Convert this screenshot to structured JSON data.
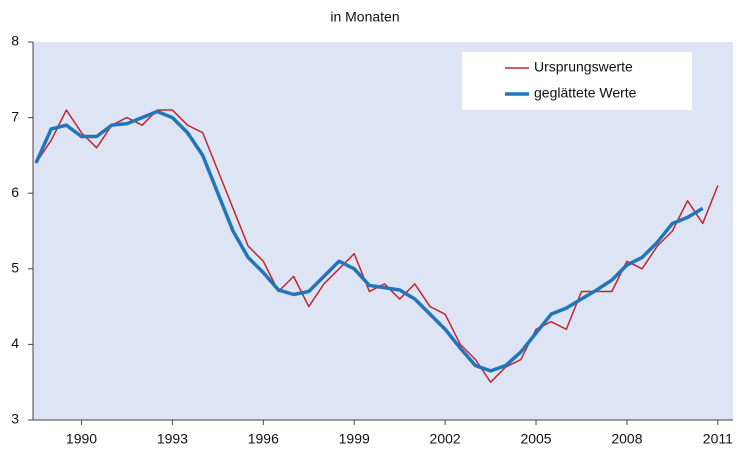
{
  "chart_data": {
    "type": "line",
    "title": "in Monaten",
    "x": [
      1988.5,
      1989.0,
      1989.5,
      1990.0,
      1990.5,
      1991.0,
      1991.5,
      1992.0,
      1992.5,
      1993.0,
      1993.5,
      1994.0,
      1994.5,
      1995.0,
      1995.5,
      1996.0,
      1996.5,
      1997.0,
      1997.5,
      1998.0,
      1998.5,
      1999.0,
      1999.5,
      2000.0,
      2000.5,
      2001.0,
      2001.5,
      2002.0,
      2002.5,
      2003.0,
      2003.5,
      2004.0,
      2004.5,
      2005.0,
      2005.5,
      2006.0,
      2006.5,
      2007.0,
      2007.5,
      2008.0,
      2008.5,
      2009.0,
      2009.5,
      2010.0,
      2010.5,
      2011.0
    ],
    "series": [
      {
        "name": "Ursprungswerte",
        "color": "#c0282e",
        "width": 1.5,
        "values": [
          6.4,
          6.7,
          7.1,
          6.8,
          6.6,
          6.9,
          7.0,
          6.9,
          7.1,
          7.1,
          6.9,
          6.8,
          6.3,
          5.8,
          5.3,
          5.1,
          4.7,
          4.9,
          4.5,
          4.8,
          5.0,
          5.2,
          4.7,
          4.8,
          4.6,
          4.8,
          4.5,
          4.4,
          4.0,
          3.8,
          3.5,
          3.7,
          3.8,
          4.2,
          4.3,
          4.2,
          4.7,
          4.7,
          4.7,
          5.1,
          5.0,
          5.3,
          5.5,
          5.9,
          5.6,
          6.1
        ]
      },
      {
        "name": "geglättete Werte",
        "color": "#2474b8",
        "width": 3.5,
        "values": [
          6.4,
          6.85,
          6.9,
          6.75,
          6.75,
          6.9,
          6.92,
          7.0,
          7.08,
          7.0,
          6.8,
          6.5,
          6.0,
          5.5,
          5.15,
          4.95,
          4.72,
          4.66,
          4.7,
          4.9,
          5.1,
          5.0,
          4.78,
          4.75,
          4.72,
          4.6,
          4.4,
          4.2,
          3.95,
          3.72,
          3.65,
          3.72,
          3.9,
          4.15,
          4.4,
          4.48,
          4.6,
          4.72,
          4.85,
          5.05,
          5.15,
          5.35,
          5.6,
          5.68,
          5.8,
          null
        ]
      }
    ],
    "xlim": [
      1988.4,
      2011.5
    ],
    "xticks": [
      1990,
      1993,
      1996,
      1999,
      2002,
      2005,
      2008,
      2011
    ],
    "ylim": [
      3,
      8
    ],
    "yticks": [
      3,
      4,
      5,
      6,
      7,
      8
    ],
    "background": "#dde4f3",
    "legend": "top-right"
  }
}
